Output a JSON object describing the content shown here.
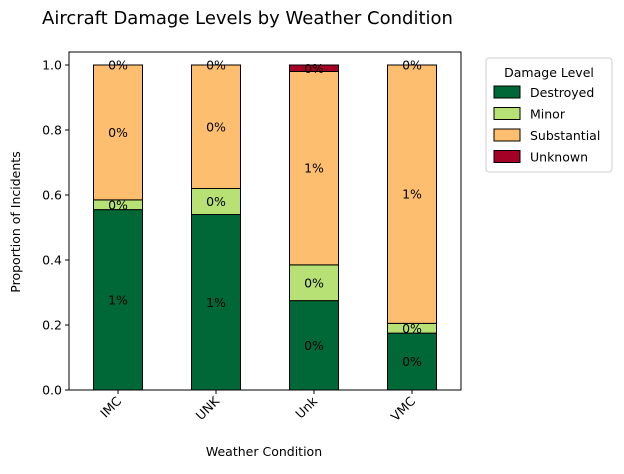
{
  "chart_data": {
    "type": "bar",
    "stacked": true,
    "title": "Aircraft Damage Levels by Weather Condition",
    "xlabel": "Weather Condition",
    "ylabel": "Proportion of Incidents",
    "ylim": [
      0,
      1.04
    ],
    "yticks": [
      0.0,
      0.2,
      0.4,
      0.6,
      0.8,
      1.0
    ],
    "ytick_labels": [
      "0.0",
      "0.2",
      "0.4",
      "0.6",
      "0.8",
      "1.0"
    ],
    "categories": [
      "IMC",
      "UNK",
      "Unk",
      "VMC"
    ],
    "legend": {
      "title": "Damage Level",
      "placement": "outside-top-right"
    },
    "series": [
      {
        "name": "Destroyed",
        "color": "#006837",
        "values": [
          0.555,
          0.54,
          0.275,
          0.175
        ]
      },
      {
        "name": "Minor",
        "color": "#b7e075",
        "values": [
          0.03,
          0.08,
          0.11,
          0.03
        ]
      },
      {
        "name": "Substantial",
        "color": "#fdbf6f",
        "values": [
          0.415,
          0.38,
          0.595,
          0.795
        ]
      },
      {
        "name": "Unknown",
        "color": "#a50026",
        "values": [
          0.0,
          0.0,
          0.02,
          0.0
        ]
      }
    ],
    "segment_labels": [
      [
        "1%",
        "0%",
        "0%",
        "0%"
      ],
      [
        "1%",
        "0%",
        "0%",
        "0%"
      ],
      [
        "0%",
        "0%",
        "1%",
        "0%"
      ],
      [
        "0%",
        "0%",
        "1%",
        "0%"
      ]
    ]
  }
}
